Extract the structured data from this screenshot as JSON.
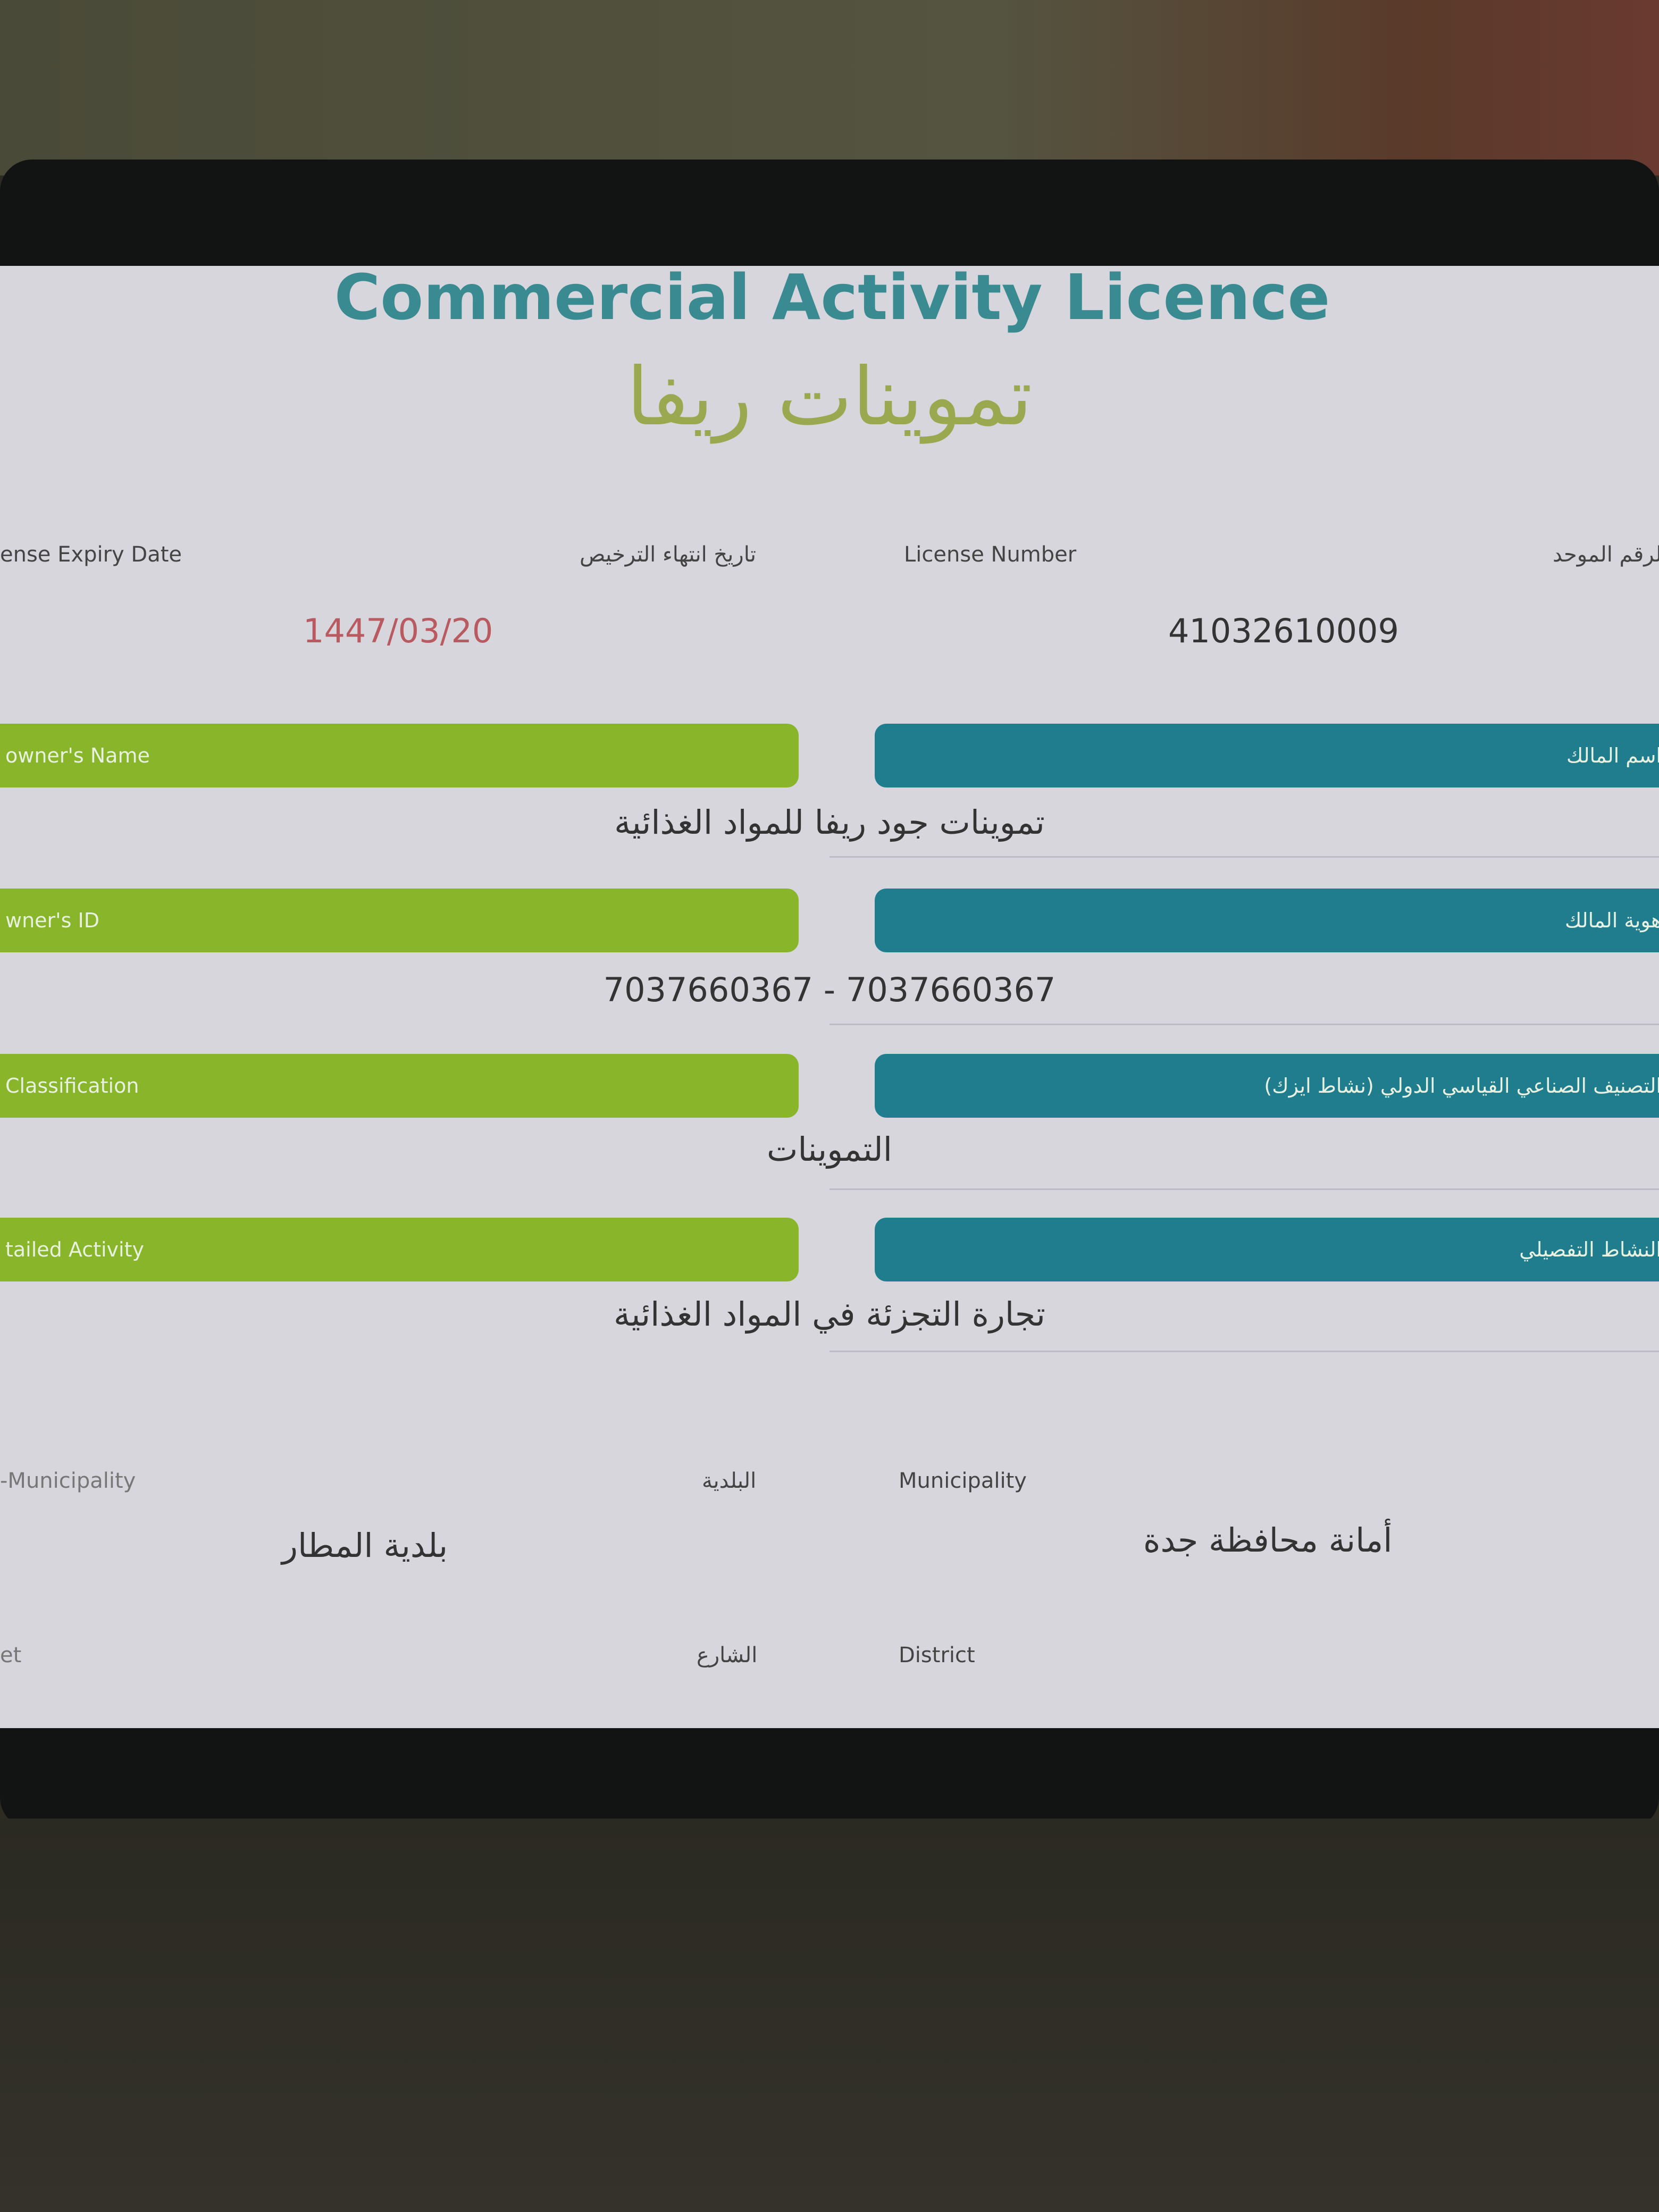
{
  "title": "Commercial Activity Licence",
  "store_name": "تموينات ريفا",
  "header_labels": {
    "expiry_date_en": "ense Expiry Date",
    "expiry_date_ar": "تاريخ انتهاء الترخيص",
    "license_number_en": "License Number",
    "unified_number_ar": "الرقم الموحد"
  },
  "expiry_date": "1447/03/20",
  "license_number": "41032610009",
  "sections": [
    {
      "label_en": "owner's Name",
      "label_ar": "اسم المالك",
      "value": "تموينات جود ريفا للمواد الغذائية"
    },
    {
      "label_en": "wner's ID",
      "label_ar": "هوية المالك",
      "value": "7037660367 - 7037660367"
    },
    {
      "label_en": "Classification",
      "label_ar": "التصنيف الصناعي القياسي الدولي (نشاط ايزك)",
      "value": "التموينات"
    },
    {
      "label_en": "tailed Activity",
      "label_ar": "النشاط التفصيلي",
      "value": "تجارة التجزئة في المواد الغذائية"
    }
  ],
  "location": {
    "sub_municipality_en": "-Municipality",
    "sub_municipality_ar": "البلدية",
    "municipality_en": "Municipality",
    "sub_municipality_value": "بلدية المطار",
    "municipality_value": "أمانة محافظة جدة",
    "street_en": "et",
    "street_ar": "الشارع",
    "district_en": "District"
  },
  "colors": {
    "title": "#3a8a92",
    "green_bar": "#88b52a",
    "teal_bar": "#1f7d8e",
    "expiry": "#b85a60"
  }
}
